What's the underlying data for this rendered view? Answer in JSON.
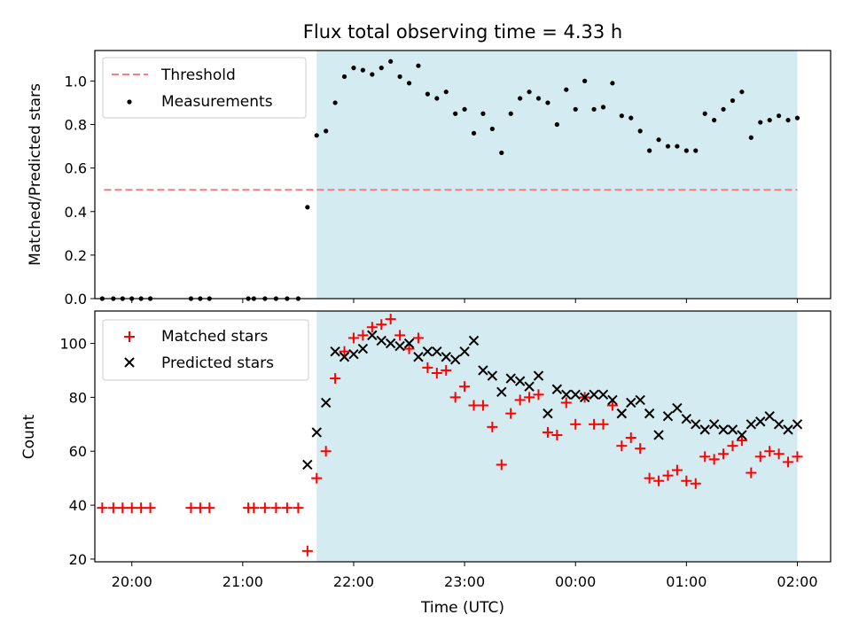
{
  "chart_data": [
    {
      "type": "scatter",
      "title": "Flux total observing time = 4.33 h",
      "xlabel": "",
      "ylabel": "Matched/Predicted stars",
      "x_unit": "time (UTC)",
      "xlim": [
        "19:40",
        "02:18"
      ],
      "ylim": [
        0,
        1.14
      ],
      "yticks": [
        "0.0",
        "0.2",
        "0.4",
        "0.6",
        "0.8",
        "1.0"
      ],
      "shaded_region": {
        "start": "21:40",
        "end": "02:00",
        "color": "#d3ebf1"
      },
      "threshold": {
        "name": "Threshold",
        "value": 0.5,
        "start": "19:45",
        "end": "02:00",
        "color": "#f57e7e"
      },
      "legend": {
        "placement": "top-left",
        "entries": [
          "Threshold",
          "Measurements"
        ]
      },
      "series": [
        {
          "name": "Measurements",
          "color": "#000000",
          "marker": "dot",
          "points": [
            [
              "19:44",
              0
            ],
            [
              "19:50",
              0
            ],
            [
              "19:55",
              0
            ],
            [
              "20:00",
              0
            ],
            [
              "20:05",
              0
            ],
            [
              "20:10",
              0
            ],
            [
              "20:32",
              0
            ],
            [
              "20:37",
              0
            ],
            [
              "20:42",
              0
            ],
            [
              "21:03",
              0
            ],
            [
              "21:06",
              0
            ],
            [
              "21:12",
              0
            ],
            [
              "21:18",
              0
            ],
            [
              "21:24",
              0
            ],
            [
              "21:30",
              0
            ],
            [
              "21:35",
              0.42
            ],
            [
              "21:40",
              0.75
            ],
            [
              "21:45",
              0.77
            ],
            [
              "21:50",
              0.9
            ],
            [
              "21:55",
              1.02
            ],
            [
              "22:00",
              1.06
            ],
            [
              "22:05",
              1.05
            ],
            [
              "22:10",
              1.03
            ],
            [
              "22:15",
              1.06
            ],
            [
              "22:20",
              1.09
            ],
            [
              "22:25",
              1.02
            ],
            [
              "22:30",
              0.99
            ],
            [
              "22:35",
              1.07
            ],
            [
              "22:40",
              0.94
            ],
            [
              "22:45",
              0.92
            ],
            [
              "22:50",
              0.95
            ],
            [
              "22:55",
              0.85
            ],
            [
              "23:00",
              0.87
            ],
            [
              "23:05",
              0.76
            ],
            [
              "23:10",
              0.85
            ],
            [
              "23:15",
              0.78
            ],
            [
              "23:20",
              0.67
            ],
            [
              "23:25",
              0.85
            ],
            [
              "23:30",
              0.92
            ],
            [
              "23:35",
              0.95
            ],
            [
              "23:40",
              0.92
            ],
            [
              "23:45",
              0.9
            ],
            [
              "23:50",
              0.8
            ],
            [
              "23:55",
              0.96
            ],
            [
              "00:00",
              0.87
            ],
            [
              "00:05",
              1.0
            ],
            [
              "00:10",
              0.87
            ],
            [
              "00:15",
              0.88
            ],
            [
              "00:20",
              0.99
            ],
            [
              "00:25",
              0.84
            ],
            [
              "00:30",
              0.83
            ],
            [
              "00:35",
              0.77
            ],
            [
              "00:40",
              0.68
            ],
            [
              "00:45",
              0.73
            ],
            [
              "00:50",
              0.7
            ],
            [
              "00:55",
              0.7
            ],
            [
              "01:00",
              0.68
            ],
            [
              "01:05",
              0.68
            ],
            [
              "01:10",
              0.85
            ],
            [
              "01:15",
              0.82
            ],
            [
              "01:20",
              0.87
            ],
            [
              "01:25",
              0.91
            ],
            [
              "01:30",
              0.95
            ],
            [
              "01:35",
              0.74
            ],
            [
              "01:40",
              0.81
            ],
            [
              "01:45",
              0.82
            ],
            [
              "01:50",
              0.84
            ],
            [
              "01:55",
              0.82
            ],
            [
              "02:00",
              0.83
            ]
          ]
        }
      ]
    },
    {
      "type": "scatter",
      "title": "",
      "xlabel": "Time (UTC)",
      "ylabel": "Count",
      "xlim": [
        "19:40",
        "02:18"
      ],
      "ylim": [
        19,
        112
      ],
      "yticks": [
        "20",
        "40",
        "60",
        "80",
        "100"
      ],
      "xticks": [
        "20:00",
        "21:00",
        "22:00",
        "23:00",
        "00:00",
        "01:00",
        "02:00"
      ],
      "shaded_region": {
        "start": "21:40",
        "end": "02:00",
        "color": "#d3ebf1"
      },
      "legend": {
        "placement": "top-left",
        "entries": [
          "Matched stars",
          "Predicted stars"
        ]
      },
      "series": [
        {
          "name": "Matched stars",
          "color": "#ff0000",
          "marker": "plus",
          "points": [
            [
              "19:44",
              39
            ],
            [
              "19:50",
              39
            ],
            [
              "19:55",
              39
            ],
            [
              "20:00",
              39
            ],
            [
              "20:05",
              39
            ],
            [
              "20:10",
              39
            ],
            [
              "20:32",
              39
            ],
            [
              "20:37",
              39
            ],
            [
              "20:42",
              39
            ],
            [
              "21:03",
              39
            ],
            [
              "21:06",
              39
            ],
            [
              "21:12",
              39
            ],
            [
              "21:18",
              39
            ],
            [
              "21:24",
              39
            ],
            [
              "21:30",
              39
            ],
            [
              "21:35",
              23
            ],
            [
              "21:40",
              50
            ],
            [
              "21:45",
              60
            ],
            [
              "21:50",
              87
            ],
            [
              "21:55",
              97
            ],
            [
              "22:00",
              102
            ],
            [
              "22:05",
              103
            ],
            [
              "22:10",
              106
            ],
            [
              "22:15",
              107
            ],
            [
              "22:20",
              109
            ],
            [
              "22:25",
              103
            ],
            [
              "22:30",
              98
            ],
            [
              "22:35",
              102
            ],
            [
              "22:40",
              91
            ],
            [
              "22:45",
              89
            ],
            [
              "22:50",
              90
            ],
            [
              "22:55",
              80
            ],
            [
              "23:00",
              84
            ],
            [
              "23:05",
              77
            ],
            [
              "23:10",
              77
            ],
            [
              "23:15",
              69
            ],
            [
              "23:20",
              55
            ],
            [
              "23:25",
              74
            ],
            [
              "23:30",
              79
            ],
            [
              "23:35",
              80
            ],
            [
              "23:40",
              81
            ],
            [
              "23:45",
              67
            ],
            [
              "23:50",
              66
            ],
            [
              "23:55",
              78
            ],
            [
              "00:00",
              70
            ],
            [
              "00:05",
              80
            ],
            [
              "00:10",
              70
            ],
            [
              "00:15",
              70
            ],
            [
              "00:20",
              77
            ],
            [
              "00:25",
              62
            ],
            [
              "00:30",
              65
            ],
            [
              "00:35",
              61
            ],
            [
              "00:40",
              50
            ],
            [
              "00:45",
              49
            ],
            [
              "00:50",
              51
            ],
            [
              "00:55",
              53
            ],
            [
              "01:00",
              49
            ],
            [
              "01:05",
              48
            ],
            [
              "01:10",
              58
            ],
            [
              "01:15",
              57
            ],
            [
              "01:20",
              59
            ],
            [
              "01:25",
              62
            ],
            [
              "01:30",
              64
            ],
            [
              "01:35",
              52
            ],
            [
              "01:40",
              58
            ],
            [
              "01:45",
              60
            ],
            [
              "01:50",
              59
            ],
            [
              "01:55",
              56
            ],
            [
              "02:00",
              58
            ]
          ]
        },
        {
          "name": "Predicted stars",
          "color": "#000000",
          "marker": "x",
          "points": [
            [
              "21:35",
              55
            ],
            [
              "21:40",
              67
            ],
            [
              "21:45",
              78
            ],
            [
              "21:50",
              97
            ],
            [
              "21:55",
              95
            ],
            [
              "22:00",
              96
            ],
            [
              "22:05",
              98
            ],
            [
              "22:10",
              103
            ],
            [
              "22:15",
              101
            ],
            [
              "22:20",
              100
            ],
            [
              "22:25",
              99
            ],
            [
              "22:30",
              100
            ],
            [
              "22:35",
              95
            ],
            [
              "22:40",
              97
            ],
            [
              "22:45",
              97
            ],
            [
              "22:50",
              95
            ],
            [
              "22:55",
              94
            ],
            [
              "23:00",
              97
            ],
            [
              "23:05",
              101
            ],
            [
              "23:10",
              90
            ],
            [
              "23:15",
              88
            ],
            [
              "23:20",
              82
            ],
            [
              "23:25",
              87
            ],
            [
              "23:30",
              86
            ],
            [
              "23:35",
              84
            ],
            [
              "23:40",
              88
            ],
            [
              "23:45",
              74
            ],
            [
              "23:50",
              83
            ],
            [
              "23:55",
              81
            ],
            [
              "00:00",
              81
            ],
            [
              "00:05",
              80
            ],
            [
              "00:10",
              81
            ],
            [
              "00:15",
              81
            ],
            [
              "00:20",
              79
            ],
            [
              "00:25",
              74
            ],
            [
              "00:30",
              78
            ],
            [
              "00:35",
              79
            ],
            [
              "00:40",
              74
            ],
            [
              "00:45",
              66
            ],
            [
              "00:50",
              73
            ],
            [
              "00:55",
              76
            ],
            [
              "01:00",
              72
            ],
            [
              "01:05",
              70
            ],
            [
              "01:10",
              68
            ],
            [
              "01:15",
              70
            ],
            [
              "01:20",
              68
            ],
            [
              "01:25",
              68
            ],
            [
              "01:30",
              66
            ],
            [
              "01:35",
              70
            ],
            [
              "01:40",
              71
            ],
            [
              "01:45",
              73
            ],
            [
              "01:50",
              70
            ],
            [
              "01:55",
              68
            ],
            [
              "02:00",
              70
            ]
          ]
        }
      ]
    }
  ]
}
